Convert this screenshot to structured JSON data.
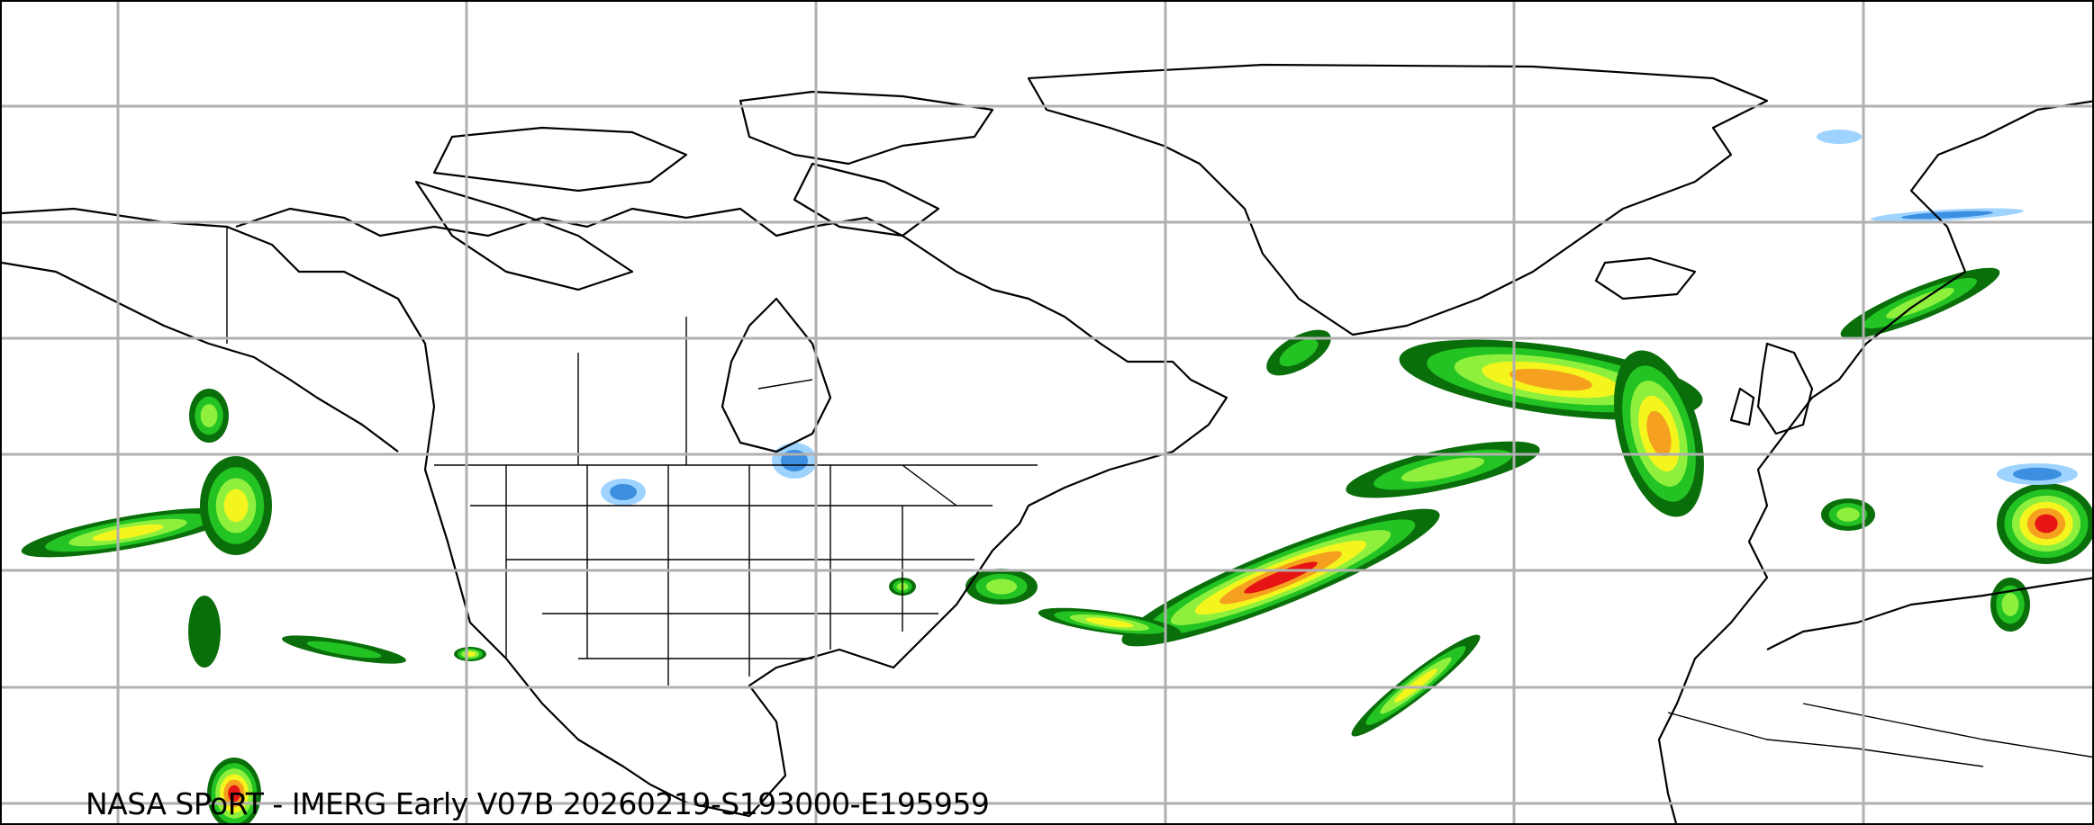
{
  "caption": "NASA SPoRT - IMERG Early V07B 20260219-S193000-E195959",
  "colors": {
    "background": "#ffffff",
    "gridline": "#b0b0b0",
    "coastline": "#000000",
    "precip_light_blue": "#9fd3ff",
    "precip_blue": "#3c8fe0",
    "precip_dark_green": "#0a6e0a",
    "precip_green": "#22c322",
    "precip_light_green": "#8ef03c",
    "precip_yellow": "#f5f51e",
    "precip_orange": "#f5a01e",
    "precip_red": "#e61414"
  },
  "layers": [
    "gridlines",
    "coastlines-and-borders",
    "precipitation-rate"
  ]
}
